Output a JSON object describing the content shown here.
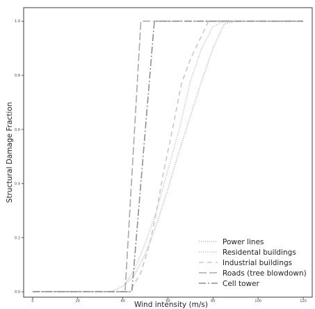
{
  "chart_data": {
    "type": "line",
    "xlabel": "Wind intensity (m/s)",
    "ylabel": "Structural Damage Fraction",
    "xlim": [
      -4,
      124
    ],
    "ylim": [
      -0.02,
      1.05
    ],
    "xticks": [
      0,
      20,
      40,
      60,
      80,
      100,
      120
    ],
    "yticks": [
      0.0,
      0.2,
      0.4,
      0.6,
      0.8,
      1.0
    ],
    "xtick_labels": [
      "0",
      "20",
      "40",
      "60",
      "80",
      "100",
      "120"
    ],
    "ytick_labels": [
      "0.0",
      "0.2",
      "0.4",
      "0.6",
      "0.8",
      "1.0"
    ],
    "grid": false,
    "legend_position": "lower-right",
    "series": [
      {
        "name": "Power lines",
        "style": "dotted",
        "color": "#b9b9b9",
        "x": [
          0,
          35,
          40,
          45,
          50,
          55,
          60,
          65,
          70,
          75,
          80,
          85,
          90,
          120
        ],
        "y": [
          0,
          0,
          0.02,
          0.06,
          0.14,
          0.25,
          0.38,
          0.52,
          0.65,
          0.78,
          0.9,
          0.99,
          1.0,
          1.0
        ]
      },
      {
        "name": "Residental buildings",
        "style": "dotted",
        "color": "#c4c4c4",
        "x": [
          0,
          35,
          40,
          45,
          50,
          55,
          60,
          65,
          70,
          75,
          80,
          85,
          120
        ],
        "y": [
          0,
          0,
          0.02,
          0.08,
          0.18,
          0.3,
          0.45,
          0.6,
          0.78,
          0.9,
          0.98,
          1.0,
          1.0
        ]
      },
      {
        "name": "Industrial buildings",
        "style": "dashed",
        "color": "#c8c8c8",
        "x": [
          0,
          43,
          48,
          52,
          55,
          58,
          62,
          66,
          70,
          74,
          78,
          120
        ],
        "y": [
          0,
          0,
          0.07,
          0.18,
          0.3,
          0.44,
          0.6,
          0.77,
          0.86,
          0.93,
          1.0,
          1.0
        ]
      },
      {
        "name": "Roads (tree blowdown)",
        "style": "longdash",
        "color": "#a9a9a9",
        "x": [
          0,
          41,
          48,
          120
        ],
        "y": [
          0,
          0,
          1.0,
          1.0
        ]
      },
      {
        "name": "Cell tower",
        "style": "dashdot",
        "color": "#8e8e8e",
        "x": [
          0,
          44,
          54,
          120
        ],
        "y": [
          0,
          0,
          1.0,
          1.0
        ]
      }
    ]
  }
}
